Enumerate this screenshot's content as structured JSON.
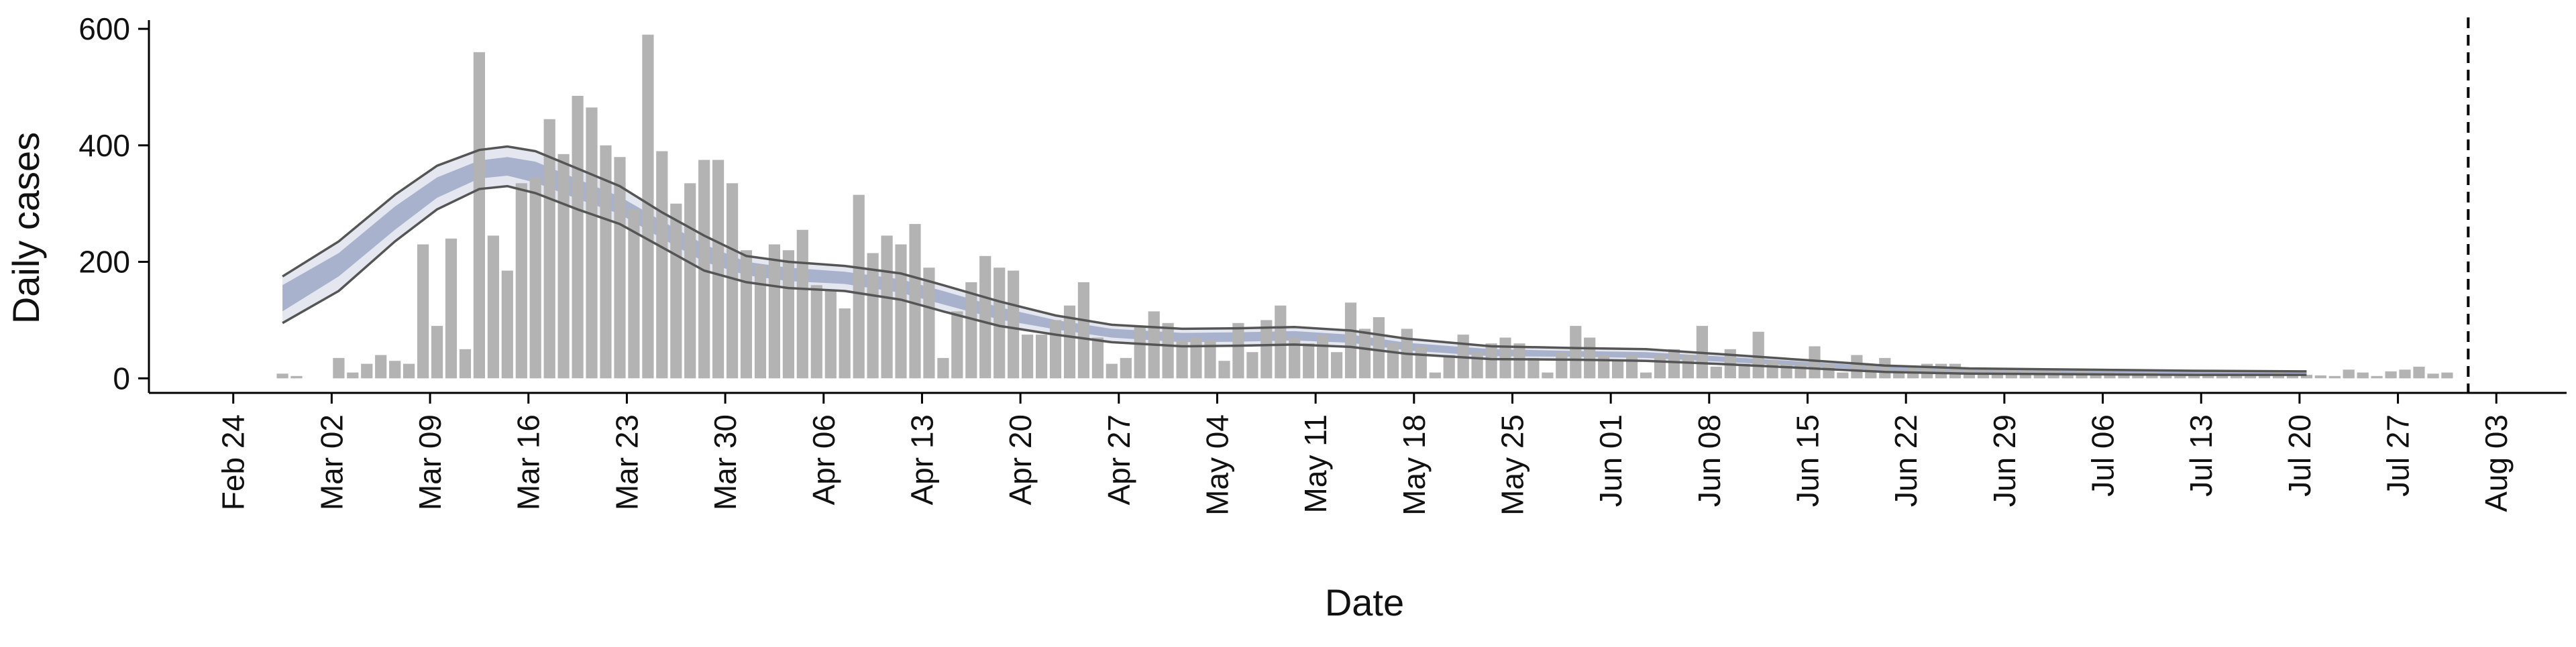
{
  "chart_data": {
    "type": "bar",
    "title": "",
    "xlabel": "Date",
    "ylabel": "Daily cases",
    "ylim": [
      -25,
      615
    ],
    "yticks": [
      0,
      200,
      400,
      600
    ],
    "xrange_dates": [
      "2020-02-18",
      "2020-08-08"
    ],
    "xticks": [
      {
        "date": "2020-02-24",
        "label": "Feb 24"
      },
      {
        "date": "2020-03-02",
        "label": "Mar 02"
      },
      {
        "date": "2020-03-09",
        "label": "Mar 09"
      },
      {
        "date": "2020-03-16",
        "label": "Mar 16"
      },
      {
        "date": "2020-03-23",
        "label": "Mar 23"
      },
      {
        "date": "2020-03-30",
        "label": "Mar 30"
      },
      {
        "date": "2020-04-06",
        "label": "Apr 06"
      },
      {
        "date": "2020-04-13",
        "label": "Apr 13"
      },
      {
        "date": "2020-04-20",
        "label": "Apr 20"
      },
      {
        "date": "2020-04-27",
        "label": "Apr 27"
      },
      {
        "date": "2020-05-04",
        "label": "May 04"
      },
      {
        "date": "2020-05-11",
        "label": "May 11"
      },
      {
        "date": "2020-05-18",
        "label": "May 18"
      },
      {
        "date": "2020-05-25",
        "label": "May 25"
      },
      {
        "date": "2020-06-01",
        "label": "Jun 01"
      },
      {
        "date": "2020-06-08",
        "label": "Jun 08"
      },
      {
        "date": "2020-06-15",
        "label": "Jun 15"
      },
      {
        "date": "2020-06-22",
        "label": "Jun 22"
      },
      {
        "date": "2020-06-29",
        "label": "Jun 29"
      },
      {
        "date": "2020-07-06",
        "label": "Jul 06"
      },
      {
        "date": "2020-07-13",
        "label": "Jul 13"
      },
      {
        "date": "2020-07-20",
        "label": "Jul 20"
      },
      {
        "date": "2020-07-27",
        "label": "Jul 27"
      },
      {
        "date": "2020-08-03",
        "label": "Aug 03"
      }
    ],
    "bars": {
      "start_date": "2020-02-27",
      "values": [
        8,
        4,
        0,
        0,
        35,
        10,
        25,
        40,
        30,
        25,
        230,
        90,
        240,
        50,
        560,
        245,
        185,
        335,
        345,
        445,
        385,
        485,
        465,
        400,
        380,
        290,
        590,
        390,
        300,
        335,
        375,
        375,
        335,
        220,
        195,
        230,
        220,
        255,
        160,
        150,
        120,
        315,
        215,
        245,
        230,
        265,
        190,
        35,
        115,
        165,
        210,
        190,
        185,
        75,
        75,
        100,
        125,
        165,
        70,
        25,
        35,
        90,
        115,
        95,
        65,
        70,
        65,
        30,
        95,
        45,
        100,
        125,
        70,
        60,
        75,
        45,
        130,
        85,
        105,
        60,
        85,
        55,
        10,
        40,
        75,
        45,
        60,
        70,
        60,
        35,
        10,
        45,
        90,
        70,
        40,
        30,
        40,
        10,
        40,
        50,
        40,
        90,
        20,
        50,
        25,
        80,
        30,
        25,
        25,
        55,
        25,
        10,
        40,
        25,
        35,
        15,
        20,
        25,
        25,
        25,
        15,
        15,
        15,
        15,
        15,
        15,
        15,
        10,
        15,
        10,
        10,
        10,
        10,
        10,
        8,
        8,
        8,
        5,
        8,
        6,
        6,
        5,
        10,
        8,
        6,
        5,
        4,
        15,
        10,
        4,
        12,
        15,
        20,
        8,
        10
      ],
      "color": "#b3b3b3"
    },
    "band_series": {
      "start_date": "2020-02-27",
      "knots": [
        {
          "d": 0,
          "lo": 95,
          "hi": 175,
          "i_lo": 115,
          "i_hi": 160
        },
        {
          "d": 4,
          "lo": 150,
          "hi": 235,
          "i_lo": 175,
          "i_hi": 215
        },
        {
          "d": 8,
          "lo": 235,
          "hi": 315,
          "i_lo": 255,
          "i_hi": 295
        },
        {
          "d": 11,
          "lo": 290,
          "hi": 365,
          "i_lo": 310,
          "i_hi": 345
        },
        {
          "d": 14,
          "lo": 325,
          "hi": 392,
          "i_lo": 343,
          "i_hi": 374
        },
        {
          "d": 16,
          "lo": 330,
          "hi": 398,
          "i_lo": 348,
          "i_hi": 380
        },
        {
          "d": 18,
          "lo": 318,
          "hi": 390,
          "i_lo": 336,
          "i_hi": 372
        },
        {
          "d": 21,
          "lo": 290,
          "hi": 360,
          "i_lo": 308,
          "i_hi": 342
        },
        {
          "d": 24,
          "lo": 265,
          "hi": 330,
          "i_lo": 282,
          "i_hi": 312
        },
        {
          "d": 27,
          "lo": 225,
          "hi": 285,
          "i_lo": 240,
          "i_hi": 270
        },
        {
          "d": 30,
          "lo": 185,
          "hi": 245,
          "i_lo": 200,
          "i_hi": 230
        },
        {
          "d": 33,
          "lo": 165,
          "hi": 210,
          "i_lo": 177,
          "i_hi": 200
        },
        {
          "d": 36,
          "lo": 155,
          "hi": 200,
          "i_lo": 167,
          "i_hi": 190
        },
        {
          "d": 40,
          "lo": 150,
          "hi": 193,
          "i_lo": 162,
          "i_hi": 183
        },
        {
          "d": 44,
          "lo": 135,
          "hi": 180,
          "i_lo": 147,
          "i_hi": 170
        },
        {
          "d": 47,
          "lo": 115,
          "hi": 160,
          "i_lo": 127,
          "i_hi": 150
        },
        {
          "d": 51,
          "lo": 90,
          "hi": 132,
          "i_lo": 101,
          "i_hi": 122
        },
        {
          "d": 55,
          "lo": 75,
          "hi": 108,
          "i_lo": 84,
          "i_hi": 100
        },
        {
          "d": 59,
          "lo": 62,
          "hi": 92,
          "i_lo": 70,
          "i_hi": 85
        },
        {
          "d": 64,
          "lo": 55,
          "hi": 85,
          "i_lo": 62,
          "i_hi": 78
        },
        {
          "d": 68,
          "lo": 56,
          "hi": 86,
          "i_lo": 63,
          "i_hi": 79
        },
        {
          "d": 72,
          "lo": 58,
          "hi": 88,
          "i_lo": 65,
          "i_hi": 81
        },
        {
          "d": 76,
          "lo": 54,
          "hi": 82,
          "i_lo": 61,
          "i_hi": 75
        },
        {
          "d": 80,
          "lo": 42,
          "hi": 68,
          "i_lo": 48,
          "i_hi": 61
        },
        {
          "d": 86,
          "lo": 33,
          "hi": 55,
          "i_lo": 38,
          "i_hi": 50
        },
        {
          "d": 92,
          "lo": 32,
          "hi": 52,
          "i_lo": 37,
          "i_hi": 47
        },
        {
          "d": 97,
          "lo": 30,
          "hi": 50,
          "i_lo": 35,
          "i_hi": 45
        },
        {
          "d": 102,
          "lo": 25,
          "hi": 42,
          "i_lo": 29,
          "i_hi": 38
        },
        {
          "d": 108,
          "lo": 18,
          "hi": 32,
          "i_lo": 21,
          "i_hi": 29
        },
        {
          "d": 114,
          "lo": 11,
          "hi": 22,
          "i_lo": 13,
          "i_hi": 20
        },
        {
          "d": 120,
          "lo": 8,
          "hi": 17,
          "i_lo": 10,
          "i_hi": 15
        },
        {
          "d": 128,
          "lo": 7,
          "hi": 15,
          "i_lo": 9,
          "i_hi": 13
        },
        {
          "d": 136,
          "lo": 6,
          "hi": 13,
          "i_lo": 8,
          "i_hi": 12
        },
        {
          "d": 144,
          "lo": 6,
          "hi": 12,
          "i_lo": 7,
          "i_hi": 11
        }
      ],
      "outer_fill": "#e4e7ef",
      "inner_fill": "#9fa8c6",
      "line_color": "#555555"
    },
    "vline": {
      "date": "2020-08-01",
      "style": "dashed"
    },
    "grid": false,
    "legend": "none"
  }
}
